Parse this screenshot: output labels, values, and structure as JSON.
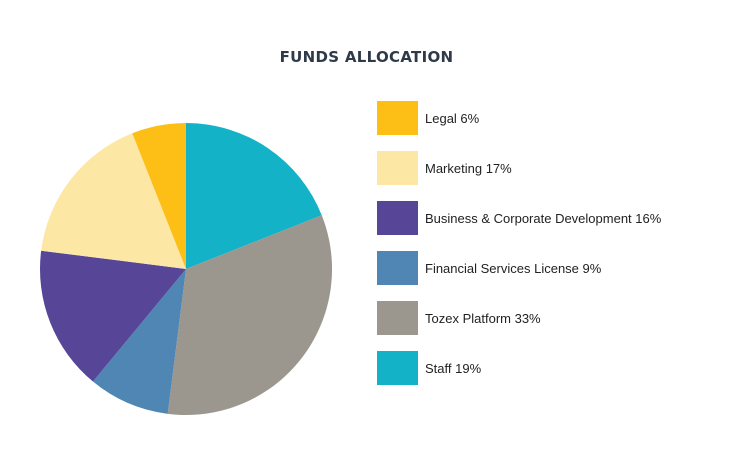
{
  "chart_data": {
    "type": "pie",
    "title": "FUNDS ALLOCATION",
    "legend_position": "right",
    "slices": [
      {
        "label": "Staff 19%",
        "value": 19,
        "color": "#13b2c7"
      },
      {
        "label": "Tozex Platform 33%",
        "value": 33,
        "color": "#9b978e"
      },
      {
        "label": "Financial Services License 9%",
        "value": 9,
        "color": "#4f86b3"
      },
      {
        "label": "Business & Corporate Development 16%",
        "value": 16,
        "color": "#574698"
      },
      {
        "label": "Marketing 17%",
        "value": 17,
        "color": "#fde7a5"
      },
      {
        "label": "Legal 6%",
        "value": 6,
        "color": "#fdbf16"
      }
    ],
    "legend_order": [
      5,
      4,
      3,
      2,
      1,
      0
    ]
  }
}
